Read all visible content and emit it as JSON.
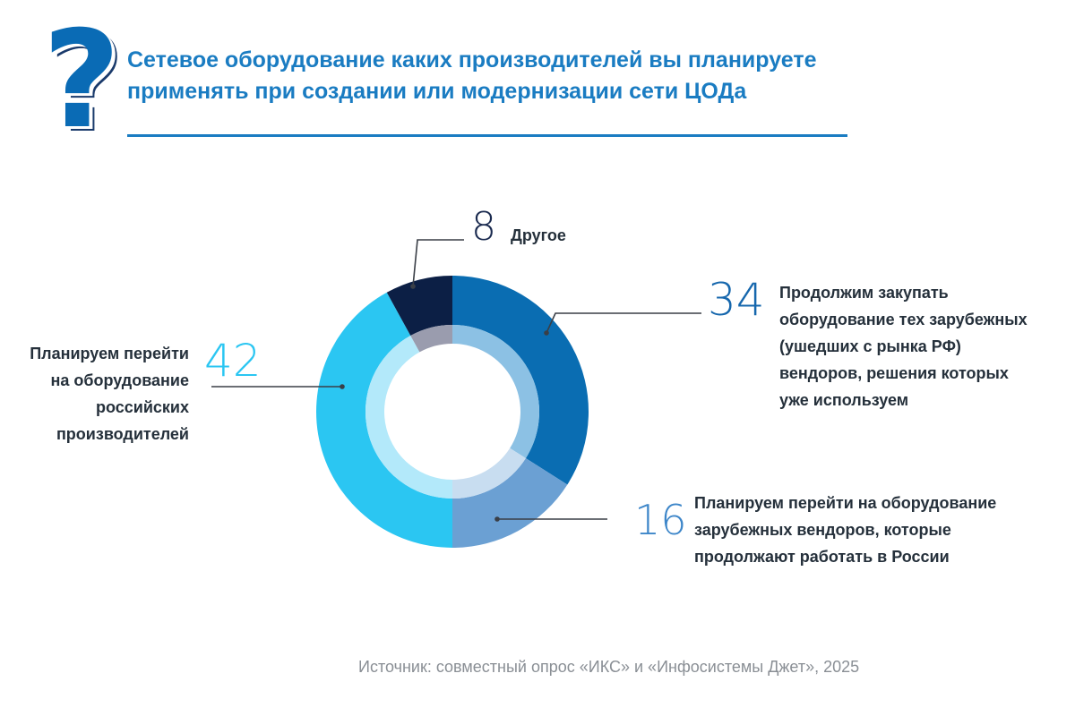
{
  "title": "Сетевое оборудование каких производителей вы планируете применять при создании или модернизации сети ЦОДа",
  "source": "Источник: совместный опрос «ИКС» и «Инфосистемы Джет», 2025",
  "chart_data": {
    "type": "pie",
    "variant": "donut",
    "unit": "%",
    "title": "Сетевое оборудование каких производителей вы планируете применять при создании или модернизации сети ЦОДа",
    "slices": [
      {
        "value": 34,
        "label_lines": [
          "Продолжим закупать",
          "оборудование тех зарубежных",
          "(ушедших с рынка РФ)",
          "вендоров, решения которых",
          "уже используем"
        ],
        "color": "#0a6db2",
        "inner_color": "#8cc1e4",
        "number_color": "#1667ad"
      },
      {
        "value": 16,
        "label_lines": [
          "Планируем перейти на оборудование",
          "зарубежных вендоров, которые",
          "продолжают работать в России"
        ],
        "color": "#6ba0d3",
        "inner_color": "#c8ddf0",
        "number_color": "#3d86c9"
      },
      {
        "value": 42,
        "label_lines": [
          "Планируем перейти",
          "на оборудование",
          "российских",
          "производителей"
        ],
        "color": "#2bc6f2",
        "inner_color": "#b3e9fa",
        "number_color": "#2bc6f2"
      },
      {
        "value": 8,
        "label_lines": [
          "Другое"
        ],
        "color": "#0c1f45",
        "inner_color": "#9a9cae",
        "number_color": "#1a2a4f"
      }
    ]
  }
}
